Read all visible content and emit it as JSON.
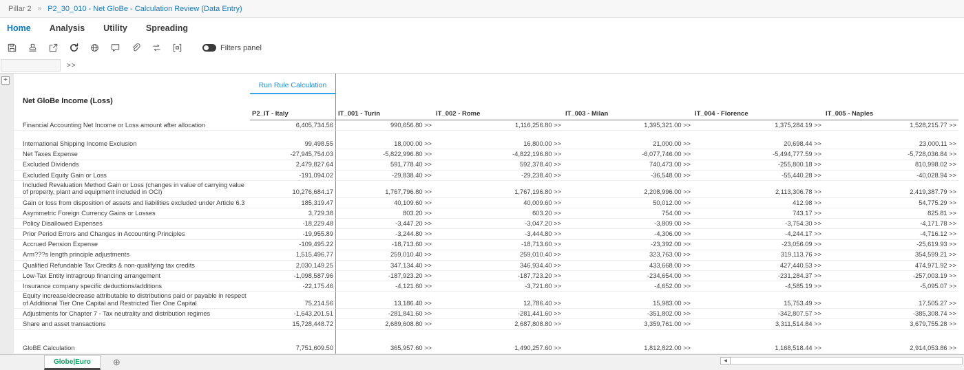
{
  "breadcrumb": {
    "root": "Pillar 2",
    "separator": "»",
    "current": "P2_30_010 - Net GloBe - Calculation Review (Data Entry)"
  },
  "menu": {
    "tabs": [
      {
        "label": "Home",
        "active": true
      },
      {
        "label": "Analysis",
        "active": false
      },
      {
        "label": "Utility",
        "active": false
      },
      {
        "label": "Spreading",
        "active": false
      }
    ]
  },
  "toolbar": {
    "icons": [
      "save",
      "stamp",
      "export",
      "refresh",
      "globe",
      "comment",
      "attachment",
      "swap",
      "grid-settings"
    ],
    "filters_label": "Filters panel"
  },
  "formula_bar": {
    "chevrons": ">>"
  },
  "grid": {
    "expand_label": "+",
    "title": "Net GloBe Income (Loss)",
    "run_rule_label": "Run Rule Calculation",
    "columns": [
      "P2_IT - Italy",
      "IT_001 - Turin",
      "IT_002 - Rome",
      "IT_003 - Milan",
      "IT_004 - Florence",
      "IT_005 - Naples"
    ],
    "drill_suffix": ">>",
    "rows": [
      {
        "label": "Financial Accounting Net Income or Loss amount after allocation",
        "values": [
          "6,405,734.56",
          "990,656.80",
          "1,116,256.80",
          "1,395,321.00",
          "1,375,284.19",
          "1,528,215.77"
        ],
        "gap_after": "small"
      },
      {
        "label": "International Shipping Income Exclusion",
        "values": [
          "99,498.55",
          "18,000.00",
          "16,800.00",
          "21,000.00",
          "20,698.44",
          "23,000.11"
        ]
      },
      {
        "label": "Net Taxes Expense",
        "values": [
          "-27,945,754.03",
          "-5,822,996.80",
          "-4,822,196.80",
          "-6,077,746.00",
          "-5,494,777.59",
          "-5,728,036.84"
        ]
      },
      {
        "label": "Excluded Dividends",
        "values": [
          "2,479,827.64",
          "591,778.40",
          "592,378.40",
          "740,473.00",
          "-255,800.18",
          "810,998.02"
        ]
      },
      {
        "label": "Excluded Equity Gain or Loss",
        "values": [
          "-191,094.02",
          "-29,838.40",
          "-29,238.40",
          "-36,548.00",
          "-55,440.28",
          "-40,028.94"
        ]
      },
      {
        "label": "Included Revaluation Method Gain or Loss (changes in value of carrying value of property, plant and equipment included in OCI)",
        "values": [
          "10,276,684.17",
          "1,767,796.80",
          "1,767,196.80",
          "2,208,996.00",
          "2,113,306.78",
          "2,419,387.79"
        ]
      },
      {
        "label": "Gain or loss from disposition of assets and liabilities excluded under Article 6.3",
        "values": [
          "185,319.47",
          "40,109.60",
          "40,009.60",
          "50,012.00",
          "412.98",
          "54,775.29"
        ]
      },
      {
        "label": "Asymmetric Foreign Currency Gains or Losses",
        "values": [
          "3,729.38",
          "803.20",
          "603.20",
          "754.00",
          "743.17",
          "825.81"
        ]
      },
      {
        "label": "Policy Disallowed Expenses",
        "values": [
          "-18,229.48",
          "-3,447.20",
          "-3,047.20",
          "-3,809.00",
          "-3,754.30",
          "-4,171.78"
        ]
      },
      {
        "label": "Prior Period Errors and Changes in Accounting Principles",
        "values": [
          "-19,955.89",
          "-3,244.80",
          "-3,444.80",
          "-4,306.00",
          "-4,244.17",
          "-4,716.12"
        ]
      },
      {
        "label": "Accrued Pension Expense",
        "values": [
          "-109,495.22",
          "-18,713.60",
          "-18,713.60",
          "-23,392.00",
          "-23,056.09",
          "-25,619.93"
        ]
      },
      {
        "label": "Arm???s length principle adjustments",
        "values": [
          "1,515,496.77",
          "259,010.40",
          "259,010.40",
          "323,763.00",
          "319,113.76",
          "354,599.21"
        ]
      },
      {
        "label": "Qualified Refundable Tax Credits & non-qualifying tax credits",
        "values": [
          "2,030,149.25",
          "347,134.40",
          "346,934.40",
          "433,668.00",
          "427,440.53",
          "474,971.92"
        ]
      },
      {
        "label": "Low-Tax Entity intragroup financing arrangement",
        "values": [
          "-1,098,587.96",
          "-187,923.20",
          "-187,723.20",
          "-234,654.00",
          "-231,284.37",
          "-257,003.19"
        ]
      },
      {
        "label": "Insurance company specific deductions/additions",
        "values": [
          "-22,175.46",
          "-4,121.60",
          "-3,721.60",
          "-4,652.00",
          "-4,585.19",
          "-5,095.07"
        ]
      },
      {
        "label": "Equity increase/decrease attributable to distributions paid or payable in respect of Additional Tier One Capital and Restricted Tier One Capital",
        "values": [
          "75,214.56",
          "13,186.40",
          "12,786.40",
          "15,983.00",
          "15,753.49",
          "17,505.27"
        ]
      },
      {
        "label": "Adjustments for Chapter 7 - Tax neutrality and distribution regimes",
        "values": [
          "-1,643,201.51",
          "-281,841.60",
          "-281,441.60",
          "-351,802.00",
          "-342,807.57",
          "-385,308.74"
        ]
      },
      {
        "label": "Share and asset transactions",
        "values": [
          "15,728,448.72",
          "2,689,608.80",
          "2,687,808.80",
          "3,359,761.00",
          "3,311,514.84",
          "3,679,755.28"
        ],
        "gap_after": "large"
      },
      {
        "label": "GloBE Calculation",
        "values": [
          "7,751,609.50",
          "365,957.60",
          "1,490,257.60",
          "1,812,822.00",
          "1,168,518.44",
          "2,914,053.86"
        ],
        "gap_after": "small"
      }
    ]
  },
  "sheet_bar": {
    "active_tab": "Globe|Euro",
    "add_label": "⊕",
    "scroll_left_arrow": "◀"
  },
  "colors": {
    "link": "#1879b8",
    "menu_active": "#0b77c2",
    "run_rule": "#1e8fd5",
    "run_rule_underline": "#2da7e8",
    "sheet_tab": "#0e9d63",
    "divider": "#8a8a8a"
  }
}
